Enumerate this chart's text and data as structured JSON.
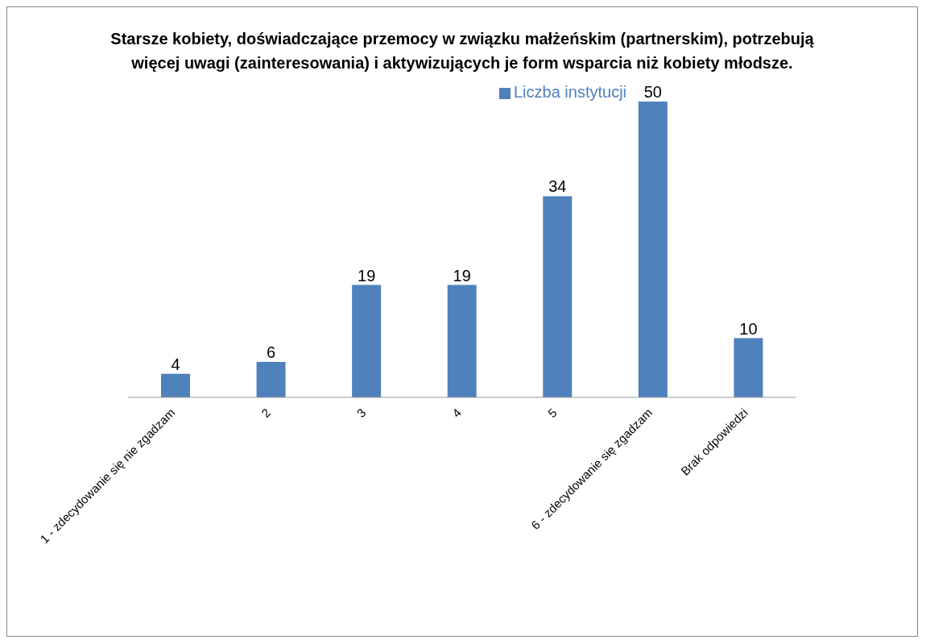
{
  "chart_data": {
    "type": "bar",
    "title": "Starsze kobiety, doświadczające przemocy w związku małżeńskim (partnerskim), potrzebują więcej uwagi (zainteresowania) i aktywizujących je form wsparcia niż kobiety młodsze.",
    "categories": [
      "1 - zdecydowanie się nie zgadzam",
      "2",
      "3",
      "4",
      "5",
      "6 - zdecydowanie się zgadzam",
      "Brak odpowiedzi"
    ],
    "series": [
      {
        "name": "Liczba instytucji",
        "color": "#4f81bd",
        "values": [
          4,
          6,
          19,
          19,
          34,
          50,
          10
        ]
      }
    ],
    "data_labels": true,
    "legend": "top",
    "grid": false
  }
}
